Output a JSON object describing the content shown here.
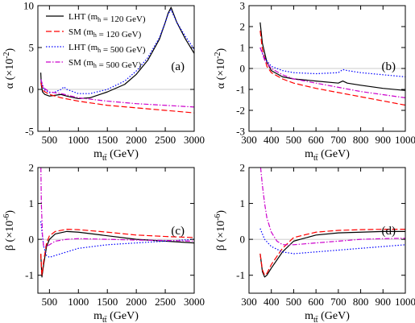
{
  "chart_data": [
    {
      "type": "line",
      "panel_label": "(a)",
      "xlabel": "m_tt̄ (GeV)",
      "ylabel": "α (×10^-2)",
      "xlim": [
        300,
        3000
      ],
      "ylim": [
        -5,
        10
      ],
      "xticks": [
        500,
        1000,
        1500,
        2000,
        2500,
        3000
      ],
      "yticks": [
        -5,
        0,
        5,
        10
      ],
      "legend": {
        "placement": "top-left",
        "entries": [
          "LHT (m_h = 120 GeV)",
          "SM (m_h = 120 GeV)",
          "LHT (m_h = 500 GeV)",
          "SM (m_h = 500 GeV)"
        ]
      },
      "series": [
        {
          "name": "LHT (m_h = 120 GeV)",
          "color": "#000000",
          "dash": "solid",
          "x": [
            350,
            360,
            380,
            420,
            500,
            600,
            700,
            800,
            1000,
            1200,
            1500,
            1800,
            2000,
            2200,
            2400,
            2500,
            2550,
            2600,
            2700,
            2850,
            3000
          ],
          "y": [
            2.0,
            0.5,
            -0.3,
            -0.6,
            -0.8,
            -0.7,
            -0.6,
            -0.8,
            -1.1,
            -1.0,
            -0.3,
            0.6,
            1.8,
            3.5,
            6.0,
            8.0,
            9.1,
            9.8,
            8.0,
            6.0,
            4.3
          ]
        },
        {
          "name": "SM (m_h = 120 GeV)",
          "color": "#ff0000",
          "dash": "dashed",
          "x": [
            350,
            400,
            500,
            700,
            1000,
            1500,
            2000,
            2500,
            3000
          ],
          "y": [
            0.8,
            -0.2,
            -0.6,
            -1.0,
            -1.4,
            -1.9,
            -2.2,
            -2.5,
            -2.8
          ]
        },
        {
          "name": "LHT (m_h = 500 GeV)",
          "color": "#0000ff",
          "dash": "dotted",
          "x": [
            350,
            400,
            500,
            600,
            700,
            750,
            800,
            1000,
            1200,
            1500,
            1800,
            2000,
            2200,
            2400,
            2500,
            2550,
            2600,
            2700,
            2850,
            3000
          ],
          "y": [
            1.2,
            0.0,
            -0.4,
            -0.3,
            0.0,
            0.3,
            0.0,
            -0.5,
            -0.5,
            0.0,
            1.0,
            2.2,
            3.8,
            6.2,
            8.0,
            9.0,
            9.5,
            8.0,
            6.3,
            4.8
          ]
        },
        {
          "name": "SM (m_h = 500 GeV)",
          "color": "#cc00cc",
          "dash": "dashdot",
          "x": [
            350,
            400,
            500,
            700,
            1000,
            1500,
            2000,
            2500,
            3000
          ],
          "y": [
            1.2,
            0.2,
            -0.3,
            -0.5,
            -1.0,
            -1.4,
            -1.7,
            -1.9,
            -2.1
          ]
        }
      ]
    },
    {
      "type": "line",
      "panel_label": "(b)",
      "xlabel": "m_tt̄ (GeV)",
      "ylabel": "α (×10^-2)",
      "xlim": [
        300,
        1000
      ],
      "ylim": [
        -3,
        3
      ],
      "xticks": [
        300,
        400,
        500,
        600,
        700,
        800,
        900,
        1000
      ],
      "yticks": [
        -3,
        -2,
        -1,
        0,
        1,
        2,
        3
      ],
      "series": [
        {
          "name": "LHT (m_h = 120 GeV)",
          "color": "#000000",
          "dash": "solid",
          "x": [
            350,
            360,
            380,
            400,
            450,
            500,
            600,
            700,
            720,
            740,
            800,
            900,
            1000
          ],
          "y": [
            2.2,
            1.2,
            0.3,
            -0.1,
            -0.4,
            -0.5,
            -0.6,
            -0.7,
            -0.6,
            -0.7,
            -0.8,
            -0.95,
            -1.05
          ]
        },
        {
          "name": "SM (m_h = 120 GeV)",
          "color": "#ff0000",
          "dash": "dashed",
          "x": [
            350,
            360,
            380,
            400,
            450,
            500,
            600,
            700,
            800,
            900,
            1000
          ],
          "y": [
            1.8,
            0.9,
            0.1,
            -0.2,
            -0.5,
            -0.7,
            -0.95,
            -1.15,
            -1.35,
            -1.55,
            -1.75
          ]
        },
        {
          "name": "LHT (m_h = 500 GeV)",
          "color": "#0000ff",
          "dash": "dotted",
          "x": [
            350,
            370,
            400,
            450,
            500,
            600,
            700,
            720,
            740,
            800,
            900,
            1000
          ],
          "y": [
            1.0,
            0.5,
            0.1,
            -0.1,
            -0.2,
            -0.25,
            -0.2,
            -0.05,
            -0.1,
            -0.2,
            -0.3,
            -0.4
          ]
        },
        {
          "name": "SM (m_h = 500 GeV)",
          "color": "#cc00cc",
          "dash": "dashdot",
          "x": [
            350,
            370,
            400,
            450,
            500,
            600,
            700,
            800,
            900,
            1000
          ],
          "y": [
            1.0,
            0.4,
            0.0,
            -0.3,
            -0.5,
            -0.7,
            -0.9,
            -1.1,
            -1.25,
            -1.4
          ]
        }
      ]
    },
    {
      "type": "line",
      "panel_label": "(c)",
      "xlabel": "m_tt̄ (GeV)",
      "ylabel": "β (×10^-6)",
      "xlim": [
        300,
        3000
      ],
      "ylim": [
        -1.5,
        2
      ],
      "xticks": [
        500,
        1000,
        1500,
        2000,
        2500,
        3000
      ],
      "yticks": [
        -1,
        0,
        1,
        2
      ],
      "series": [
        {
          "name": "LHT (m_h = 120 GeV)",
          "color": "#000000",
          "dash": "solid",
          "x": [
            350,
            370,
            400,
            450,
            500,
            600,
            800,
            1000,
            1500,
            2000,
            2500,
            3000
          ],
          "y": [
            -0.4,
            -1.05,
            -0.7,
            -0.2,
            0.0,
            0.15,
            0.22,
            0.2,
            0.1,
            0.0,
            -0.05,
            -0.1
          ]
        },
        {
          "name": "SM (m_h = 120 GeV)",
          "color": "#ff0000",
          "dash": "dashed",
          "x": [
            350,
            370,
            400,
            450,
            500,
            600,
            800,
            1000,
            1500,
            2000,
            2500,
            3000
          ],
          "y": [
            -0.4,
            -1.0,
            -0.6,
            -0.1,
            0.1,
            0.22,
            0.28,
            0.27,
            0.2,
            0.12,
            0.08,
            0.05
          ]
        },
        {
          "name": "LHT (m_h = 500 GeV)",
          "color": "#0000ff",
          "dash": "dotted",
          "x": [
            350,
            400,
            450,
            500,
            600,
            800,
            1000,
            1500,
            2000,
            2500,
            3000
          ],
          "y": [
            0.5,
            -0.2,
            -0.45,
            -0.5,
            -0.45,
            -0.35,
            -0.25,
            -0.15,
            -0.1,
            -0.05,
            0.0
          ]
        },
        {
          "name": "SM (m_h = 500 GeV)",
          "color": "#cc00cc",
          "dash": "dashdot",
          "x": [
            352,
            360,
            380,
            400,
            450,
            500,
            600,
            800,
            1000,
            1500,
            2000,
            2500,
            3000
          ],
          "y": [
            2.0,
            1.0,
            0.1,
            -0.2,
            -0.2,
            -0.15,
            -0.05,
            0.0,
            0.02,
            0.0,
            -0.02,
            -0.03,
            -0.05
          ]
        }
      ]
    },
    {
      "type": "line",
      "panel_label": "(d)",
      "xlabel": "m_tt̄ (GeV)",
      "ylabel": "β (×10^-6)",
      "xlim": [
        300,
        1000
      ],
      "ylim": [
        -1.5,
        2
      ],
      "xticks": [
        300,
        400,
        500,
        600,
        700,
        800,
        900,
        1000
      ],
      "yticks": [
        -1,
        0,
        1,
        2
      ],
      "series": [
        {
          "name": "LHT (m_h = 120 GeV)",
          "color": "#000000",
          "dash": "solid",
          "x": [
            350,
            360,
            370,
            380,
            400,
            450,
            500,
            600,
            700,
            800,
            900,
            1000
          ],
          "y": [
            -0.4,
            -0.9,
            -1.05,
            -1.0,
            -0.8,
            -0.35,
            -0.05,
            0.12,
            0.18,
            0.2,
            0.22,
            0.22
          ]
        },
        {
          "name": "SM (m_h = 120 GeV)",
          "color": "#ff0000",
          "dash": "dashed",
          "x": [
            350,
            360,
            370,
            380,
            400,
            450,
            500,
            600,
            700,
            800,
            900,
            1000
          ],
          "y": [
            -0.4,
            -0.85,
            -1.0,
            -0.95,
            -0.7,
            -0.25,
            0.05,
            0.2,
            0.25,
            0.27,
            0.28,
            0.28
          ]
        },
        {
          "name": "LHT (m_h = 500 GeV)",
          "color": "#0000ff",
          "dash": "dotted",
          "x": [
            350,
            370,
            400,
            450,
            500,
            600,
            700,
            800,
            900,
            1000
          ],
          "y": [
            0.3,
            0.0,
            -0.2,
            -0.35,
            -0.4,
            -0.35,
            -0.3,
            -0.25,
            -0.2,
            -0.15
          ]
        },
        {
          "name": "SM (m_h = 500 GeV)",
          "color": "#cc00cc",
          "dash": "dashdot",
          "x": [
            352,
            360,
            370,
            380,
            400,
            425,
            450,
            500,
            600,
            700,
            800,
            900,
            1000
          ],
          "y": [
            2.0,
            1.5,
            1.0,
            0.6,
            0.2,
            -0.05,
            -0.15,
            -0.15,
            -0.1,
            -0.05,
            0.0,
            0.02,
            0.03
          ]
        }
      ]
    }
  ]
}
